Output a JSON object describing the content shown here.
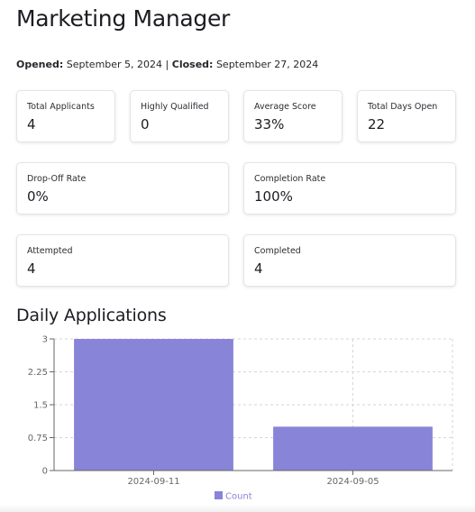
{
  "header": {
    "title": "Marketing Manager",
    "opened_label": "Opened:",
    "opened_value": "September 5, 2024",
    "separator": "|",
    "closed_label": "Closed:",
    "closed_value": "September 27, 2024"
  },
  "stats": {
    "total_applicants": {
      "label": "Total Applicants",
      "value": "4"
    },
    "highly_qualified": {
      "label": "Highly Qualified",
      "value": "0"
    },
    "average_score": {
      "label": "Average Score",
      "value": "33%"
    },
    "total_days_open": {
      "label": "Total Days Open",
      "value": "22"
    },
    "drop_off_rate": {
      "label": "Drop-Off Rate",
      "value": "0%"
    },
    "completion_rate": {
      "label": "Completion Rate",
      "value": "100%"
    },
    "attempted": {
      "label": "Attempted",
      "value": "4"
    },
    "completed": {
      "label": "Completed",
      "value": "4"
    }
  },
  "daily_section_title": "Daily Applications",
  "chart_data": {
    "type": "bar",
    "categories": [
      "2024-09-11",
      "2024-09-05"
    ],
    "series": [
      {
        "name": "Count",
        "values": [
          3,
          1
        ],
        "color": "#8884d8"
      }
    ],
    "ylim": [
      0,
      3
    ],
    "yticks": [
      "0",
      "0.75",
      "1.5",
      "2.25",
      "3"
    ],
    "grid": true,
    "legend_position": "bottom"
  }
}
